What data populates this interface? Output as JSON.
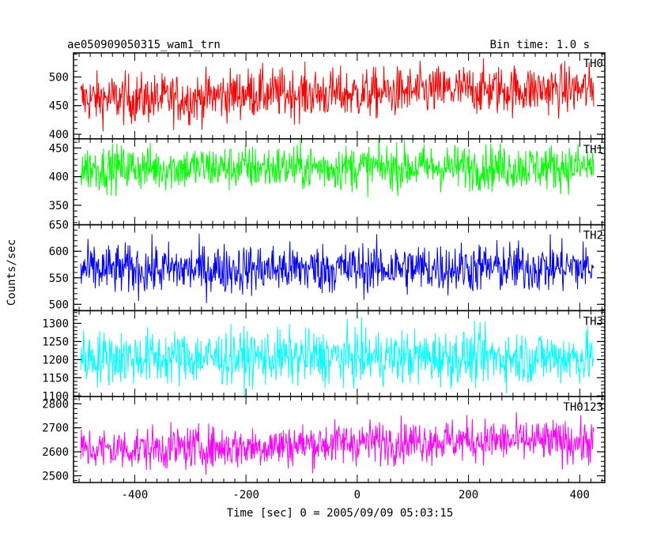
{
  "chart_data": {
    "type": "line",
    "title_left": "ae050909050315_wam1_trn",
    "title_right": "Bin time: 1.0 s",
    "xlabel": "Time [sec] 0 = 2005/09/09 05:03:15",
    "ylabel": "Counts/sec",
    "xlim": [
      -510,
      445
    ],
    "x_ticks": [
      -400,
      -200,
      0,
      200,
      400
    ],
    "x_range": [
      -497,
      425
    ],
    "grid": false,
    "panels": [
      {
        "name": "TH0",
        "color": "#ff0000",
        "ylim": [
          392,
          542
        ],
        "y_ticks": [
          400,
          450,
          500
        ],
        "mean": 468,
        "spread": 22,
        "trend": [
          [
            -497,
            462
          ],
          [
            -300,
            462
          ],
          [
            -200,
            472
          ],
          [
            0,
            470
          ],
          [
            200,
            478
          ],
          [
            425,
            478
          ]
        ]
      },
      {
        "name": "TH1",
        "color": "#00ff00",
        "ylim": [
          316,
          466
        ],
        "y_ticks": [
          350,
          400,
          450
        ],
        "mean": 415,
        "spread": 20,
        "trend": [
          [
            -497,
            415
          ],
          [
            425,
            417
          ]
        ]
      },
      {
        "name": "TH2",
        "color": "#0000ff",
        "ylim": [
          488,
          650
        ],
        "y_ticks": [
          500,
          550,
          600,
          650
        ],
        "mean": 568,
        "spread": 24,
        "trend": [
          [
            -497,
            565
          ],
          [
            425,
            570
          ]
        ]
      },
      {
        "name": "TH3",
        "color": "#00ffff",
        "ylim": [
          1098,
          1335
        ],
        "y_ticks": [
          1100,
          1150,
          1200,
          1250,
          1300
        ],
        "mean": 1205,
        "spread": 38,
        "trend": [
          [
            -497,
            1205
          ],
          [
            425,
            1207
          ]
        ]
      },
      {
        "name": "TH0123",
        "color": "#ff00ff",
        "ylim": [
          2472,
          2830
        ],
        "y_ticks": [
          2500,
          2600,
          2700,
          2800
        ],
        "mean": 2630,
        "spread": 45,
        "trend": [
          [
            -497,
            2610
          ],
          [
            -200,
            2620
          ],
          [
            0,
            2640
          ],
          [
            200,
            2648
          ],
          [
            425,
            2640
          ]
        ]
      }
    ]
  }
}
